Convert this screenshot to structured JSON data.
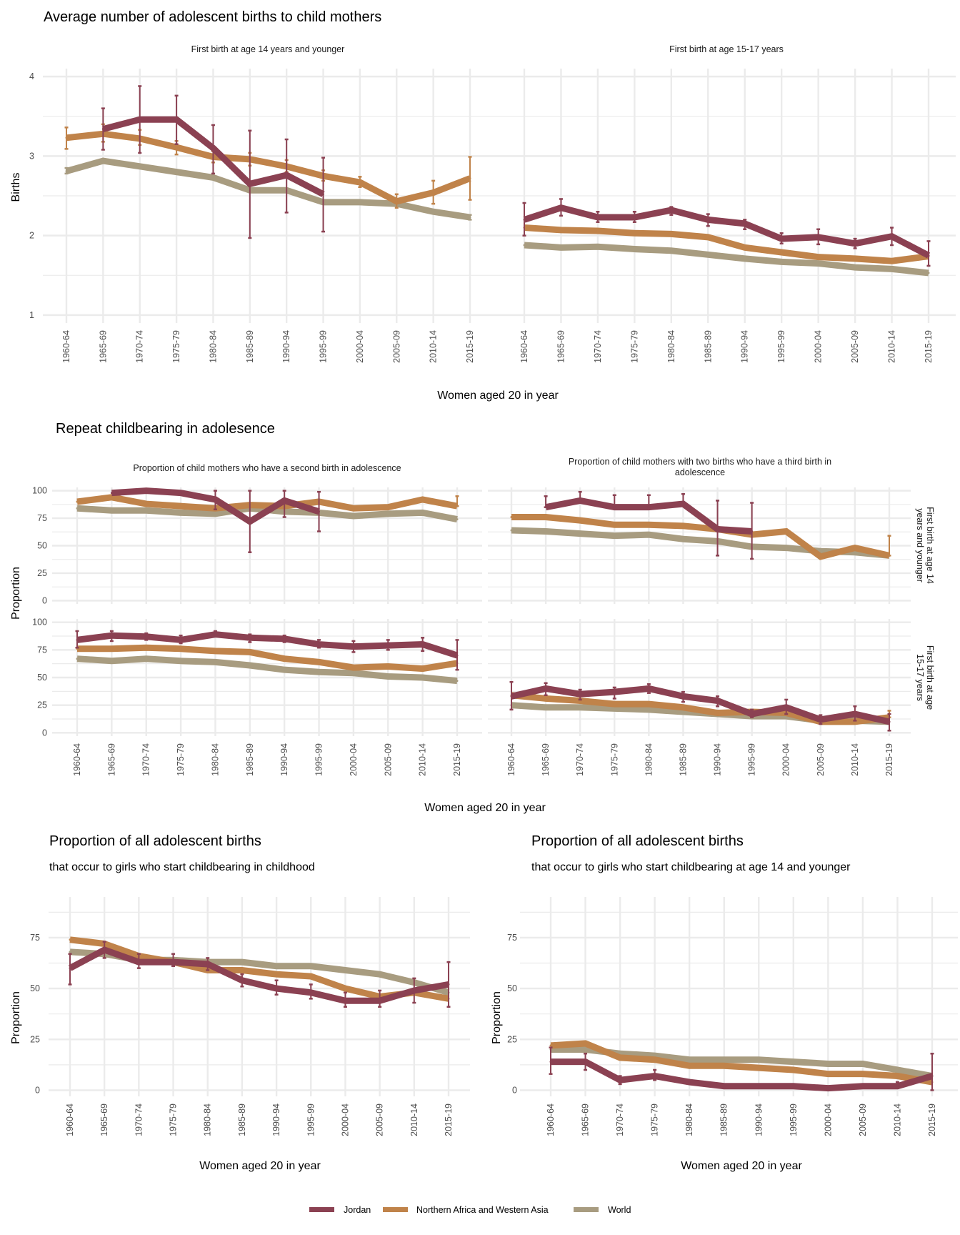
{
  "colors": {
    "Jordan": "#8b4152",
    "Northern Africa and Western Asia": "#c0834a",
    "World": "#a89c80"
  },
  "legend": {
    "items": [
      {
        "name": "Jordan",
        "color": "#8b4152"
      },
      {
        "name": "Northern Africa and Western Asia",
        "color": "#c0834a"
      },
      {
        "name": "World",
        "color": "#a89c80"
      }
    ],
    "position": "bottom"
  },
  "sections": {
    "births": {
      "title": "Average number of adolescent births to child mothers",
      "ylabel": "Births",
      "xlabel": "Women aged 20 in year"
    },
    "repeat": {
      "title": "Repeat childbearing in adolesence",
      "ylabel": "Proportion",
      "xlabel": "Women aged 20 in year"
    },
    "prop_childhood": {
      "title": "Proportion of all adolescent births",
      "subtitle": "that occur to girls who start childbearing in childhood",
      "ylabel": "Proportion",
      "xlabel": "Women aged 20 in year"
    },
    "prop_14": {
      "title": "Proportion of all adolescent births",
      "subtitle": "that occur to girls who start childbearing at age 14 and younger",
      "ylabel": "Proportion",
      "xlabel": "Women aged 20 in year"
    }
  },
  "chart_data": [
    {
      "id": "births_14",
      "type": "line",
      "section": "births",
      "strip_top": "First birth at age 14 years and younger",
      "categories": [
        "1960-64",
        "1965-69",
        "1970-74",
        "1975-79",
        "1980-84",
        "1985-89",
        "1990-94",
        "1995-99",
        "2000-04",
        "2005-09",
        "2010-14",
        "2015-19"
      ],
      "ylim": [
        0.9,
        4.1
      ],
      "yticks": [
        1,
        2,
        3,
        4
      ],
      "grid": true,
      "series": [
        {
          "name": "World",
          "values": [
            2.81,
            2.94,
            2.87,
            2.8,
            2.73,
            2.57,
            2.57,
            2.42,
            2.42,
            2.4,
            2.3,
            2.23
          ],
          "lo": [
            2.78,
            2.92,
            null,
            null,
            null,
            null,
            null,
            null,
            null,
            null,
            null,
            2.2
          ],
          "hi": [
            2.85,
            2.95,
            null,
            null,
            null,
            null,
            null,
            null,
            null,
            null,
            null,
            2.26
          ]
        },
        {
          "name": "Northern Africa and Western Asia",
          "values": [
            3.23,
            3.28,
            3.22,
            3.11,
            2.99,
            2.96,
            2.87,
            2.75,
            2.67,
            2.43,
            2.54,
            2.72
          ],
          "lo": [
            3.09,
            3.18,
            3.14,
            3.02,
            2.92,
            2.88,
            2.8,
            2.69,
            2.61,
            2.35,
            2.4,
            2.45
          ],
          "hi": [
            3.36,
            3.4,
            3.33,
            3.19,
            3.06,
            3.04,
            2.95,
            2.82,
            2.74,
            2.52,
            2.69,
            2.99
          ]
        },
        {
          "name": "Jordan",
          "values": [
            null,
            3.34,
            3.46,
            3.46,
            3.1,
            2.65,
            2.76,
            2.52,
            null,
            null,
            null,
            null
          ],
          "lo": [
            null,
            3.08,
            3.04,
            3.15,
            2.78,
            1.97,
            2.29,
            2.05,
            null,
            null,
            null,
            null
          ],
          "hi": [
            null,
            3.6,
            3.88,
            3.76,
            3.39,
            3.32,
            3.21,
            2.98,
            null,
            null,
            null,
            null
          ]
        }
      ]
    },
    {
      "id": "births_1517",
      "type": "line",
      "section": "births",
      "strip_top": "First birth at age 15-17 years",
      "categories": [
        "1960-64",
        "1965-69",
        "1970-74",
        "1975-79",
        "1980-84",
        "1985-89",
        "1990-94",
        "1995-99",
        "2000-04",
        "2005-09",
        "2010-14",
        "2015-19"
      ],
      "ylim": [
        0.9,
        4.1
      ],
      "yticks": [
        1,
        2,
        3,
        4
      ],
      "grid": true,
      "series": [
        {
          "name": "World",
          "values": [
            1.88,
            1.85,
            1.86,
            1.83,
            1.81,
            1.76,
            1.71,
            1.67,
            1.65,
            1.6,
            1.58,
            1.53
          ],
          "lo": [],
          "hi": []
        },
        {
          "name": "Northern Africa and Western Asia",
          "values": [
            2.1,
            2.07,
            2.06,
            2.03,
            2.02,
            1.98,
            1.85,
            1.79,
            1.73,
            1.71,
            1.68,
            1.74
          ],
          "lo": [],
          "hi": []
        },
        {
          "name": "Jordan",
          "values": [
            2.2,
            2.35,
            2.23,
            2.23,
            2.32,
            2.2,
            2.15,
            1.96,
            1.98,
            1.9,
            1.99,
            1.75
          ],
          "lo": [
            2.0,
            2.25,
            2.17,
            2.17,
            2.26,
            2.12,
            2.08,
            1.9,
            1.89,
            1.84,
            1.88,
            1.62
          ],
          "hi": [
            2.41,
            2.46,
            2.3,
            2.3,
            2.36,
            2.27,
            2.2,
            2.03,
            2.08,
            1.96,
            2.1,
            1.93
          ]
        }
      ]
    },
    {
      "id": "repeat_second_14",
      "type": "line",
      "section": "repeat",
      "strip_top": "Proportion of child mothers who have a second birth in adolescence",
      "categories": [
        "1960-64",
        "1965-69",
        "1970-74",
        "1975-79",
        "1980-84",
        "1985-89",
        "1990-94",
        "1995-99",
        "2000-04",
        "2005-09",
        "2010-14",
        "2015-19"
      ],
      "ylim": [
        -3,
        103
      ],
      "yticks": [
        0,
        25,
        50,
        75,
        100
      ],
      "grid": true,
      "series": [
        {
          "name": "World",
          "values": [
            84,
            82,
            82,
            80,
            79,
            84,
            81,
            80,
            77,
            79,
            80,
            74
          ],
          "lo": [],
          "hi": []
        },
        {
          "name": "Northern Africa and Western Asia",
          "values": [
            90,
            94,
            88,
            86,
            84,
            87,
            86,
            90,
            84,
            85,
            92,
            86
          ],
          "lo": [],
          "hi": [
            null,
            null,
            null,
            null,
            null,
            null,
            null,
            null,
            null,
            null,
            null,
            95
          ]
        },
        {
          "name": "Jordan",
          "values": [
            null,
            98,
            100,
            98,
            92,
            72,
            91,
            81,
            null,
            null,
            null,
            null
          ],
          "lo": [
            null,
            null,
            null,
            null,
            83,
            44,
            76,
            63,
            null,
            null,
            null,
            null
          ],
          "hi": [
            null,
            null,
            null,
            null,
            100,
            100,
            100,
            99,
            null,
            null,
            null,
            null
          ]
        }
      ]
    },
    {
      "id": "repeat_third_14",
      "type": "line",
      "section": "repeat",
      "strip_top": "Proportion of child mothers with two births who have a third birth in adolescence",
      "strip_right": "First birth at age 14 years and younger",
      "categories": [
        "1960-64",
        "1965-69",
        "1970-74",
        "1975-79",
        "1980-84",
        "1985-89",
        "1990-94",
        "1995-99",
        "2000-04",
        "2005-09",
        "2010-14",
        "2015-19"
      ],
      "ylim": [
        -3,
        103
      ],
      "yticks": [
        0,
        25,
        50,
        75,
        100
      ],
      "grid": true,
      "series": [
        {
          "name": "World",
          "values": [
            64,
            63,
            61,
            59,
            60,
            56,
            54,
            49,
            48,
            45,
            44,
            41
          ],
          "lo": [],
          "hi": []
        },
        {
          "name": "Northern Africa and Western Asia",
          "values": [
            76,
            76,
            73,
            69,
            69,
            68,
            65,
            60,
            63,
            40,
            48,
            41
          ],
          "lo": [],
          "hi": [
            null,
            null,
            null,
            null,
            null,
            null,
            null,
            null,
            null,
            null,
            null,
            59
          ]
        },
        {
          "name": "Jordan",
          "values": [
            null,
            85,
            91,
            85,
            85,
            88,
            65,
            63,
            null,
            null,
            null,
            null
          ],
          "lo": [
            null,
            null,
            null,
            null,
            null,
            null,
            41,
            38,
            null,
            null,
            null,
            null
          ],
          "hi": [
            null,
            95,
            99,
            96,
            96,
            97,
            91,
            89,
            null,
            null,
            null,
            null
          ]
        }
      ]
    },
    {
      "id": "repeat_second_1517",
      "type": "line",
      "section": "repeat",
      "strip_right": "",
      "categories": [
        "1960-64",
        "1965-69",
        "1970-74",
        "1975-79",
        "1980-84",
        "1985-89",
        "1990-94",
        "1995-99",
        "2000-04",
        "2005-09",
        "2010-14",
        "2015-19"
      ],
      "ylim": [
        -3,
        103
      ],
      "yticks": [
        0,
        25,
        50,
        75,
        100
      ],
      "grid": true,
      "series": [
        {
          "name": "World",
          "values": [
            67,
            65,
            67,
            65,
            64,
            61,
            57,
            55,
            54,
            51,
            50,
            47
          ],
          "lo": [],
          "hi": []
        },
        {
          "name": "Northern Africa and Western Asia",
          "values": [
            76,
            76,
            77,
            76,
            74,
            73,
            67,
            64,
            59,
            60,
            58,
            63
          ],
          "lo": [],
          "hi": []
        },
        {
          "name": "Jordan",
          "values": [
            84,
            88,
            87,
            84,
            89,
            86,
            85,
            80,
            78,
            79,
            80,
            70
          ],
          "lo": [
            77,
            83,
            84,
            81,
            87,
            82,
            82,
            77,
            73,
            75,
            74,
            57
          ],
          "hi": [
            92,
            92,
            90,
            88,
            92,
            89,
            88,
            84,
            83,
            84,
            86,
            84
          ]
        }
      ]
    },
    {
      "id": "repeat_third_1517",
      "type": "line",
      "section": "repeat",
      "strip_right": "First birth at age 15-17 years",
      "categories": [
        "1960-64",
        "1965-69",
        "1970-74",
        "1975-79",
        "1980-84",
        "1985-89",
        "1990-94",
        "1995-99",
        "2000-04",
        "2005-09",
        "2010-14",
        "2015-19"
      ],
      "ylim": [
        -3,
        103
      ],
      "yticks": [
        0,
        25,
        50,
        75,
        100
      ],
      "grid": true,
      "series": [
        {
          "name": "World",
          "values": [
            25,
            23,
            23,
            22,
            21,
            19,
            17,
            15,
            15,
            11,
            11,
            10
          ],
          "lo": [],
          "hi": []
        },
        {
          "name": "Northern Africa and Western Asia",
          "values": [
            34,
            31,
            29,
            26,
            26,
            23,
            18,
            19,
            18,
            10,
            10,
            14
          ],
          "lo": [],
          "hi": [
            null,
            null,
            null,
            null,
            null,
            null,
            null,
            null,
            null,
            null,
            null,
            20
          ]
        },
        {
          "name": "Jordan",
          "values": [
            33,
            40,
            35,
            37,
            40,
            33,
            29,
            17,
            23,
            12,
            17,
            10
          ],
          "lo": [
            21,
            34,
            30,
            31,
            36,
            28,
            24,
            14,
            17,
            8,
            11,
            2
          ],
          "hi": [
            46,
            45,
            39,
            41,
            44,
            37,
            33,
            21,
            30,
            16,
            24,
            17
          ]
        }
      ]
    },
    {
      "id": "prop_childhood",
      "type": "line",
      "section": "prop_childhood",
      "categories": [
        "1960-64",
        "1965-69",
        "1970-74",
        "1975-79",
        "1980-84",
        "1985-89",
        "1990-94",
        "1995-99",
        "2000-04",
        "2005-09",
        "2010-14",
        "2015-19"
      ],
      "ylim": [
        -3,
        95
      ],
      "yticks": [
        0,
        25,
        50,
        75
      ],
      "grid": true,
      "series": [
        {
          "name": "World",
          "values": [
            68,
            67,
            64,
            64,
            63,
            63,
            61,
            61,
            59,
            57,
            53,
            48
          ],
          "lo": [],
          "hi": []
        },
        {
          "name": "Northern Africa and Western Asia",
          "values": [
            74,
            72,
            66,
            63,
            59,
            59,
            57,
            56,
            50,
            46,
            48,
            45
          ],
          "lo": [],
          "hi": []
        },
        {
          "name": "Jordan",
          "values": [
            60,
            69,
            63,
            63,
            62,
            54,
            50,
            48,
            44,
            44,
            49,
            52
          ],
          "lo": [
            52,
            65,
            60,
            61,
            59,
            51,
            47,
            45,
            41,
            41,
            43,
            41
          ],
          "hi": [
            67,
            73,
            67,
            67,
            65,
            57,
            54,
            52,
            48,
            49,
            55,
            63
          ]
        }
      ]
    },
    {
      "id": "prop_14",
      "type": "line",
      "section": "prop_14",
      "categories": [
        "1960-64",
        "1965-69",
        "1970-74",
        "1975-79",
        "1980-84",
        "1985-89",
        "1990-94",
        "1995-99",
        "2000-04",
        "2005-09",
        "2010-14",
        "2015-19"
      ],
      "ylim": [
        -3,
        95
      ],
      "yticks": [
        0,
        25,
        50,
        75
      ],
      "grid": true,
      "series": [
        {
          "name": "World",
          "values": [
            20,
            20,
            18,
            17,
            15,
            15,
            15,
            14,
            13,
            13,
            10,
            7
          ],
          "lo": [],
          "hi": []
        },
        {
          "name": "Northern Africa and Western Asia",
          "values": [
            22,
            23,
            16,
            15,
            12,
            12,
            11,
            10,
            8,
            8,
            7,
            4
          ],
          "lo": [],
          "hi": []
        },
        {
          "name": "Jordan",
          "values": [
            14,
            14,
            5,
            7,
            4,
            2,
            2,
            2,
            1,
            2,
            2,
            7
          ],
          "lo": [
            8,
            10,
            3,
            5,
            null,
            null,
            null,
            null,
            null,
            null,
            1,
            0
          ],
          "hi": [
            21,
            18,
            7,
            10,
            null,
            null,
            null,
            null,
            null,
            null,
            4,
            18
          ]
        }
      ]
    }
  ]
}
